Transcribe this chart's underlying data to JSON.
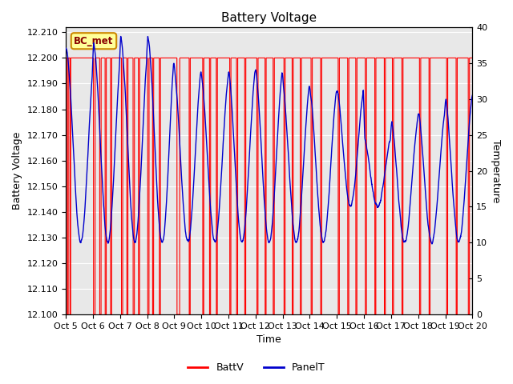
{
  "title": "Battery Voltage",
  "xlabel": "Time",
  "ylabel_left": "Battery Voltage",
  "ylabel_right": "Temperature",
  "ylim_left": [
    12.1,
    12.212
  ],
  "ylim_right": [
    0,
    40
  ],
  "yticks_left": [
    12.1,
    12.11,
    12.12,
    12.13,
    12.14,
    12.15,
    12.16,
    12.17,
    12.18,
    12.19,
    12.2,
    12.21
  ],
  "yticks_right": [
    0,
    5,
    10,
    15,
    20,
    25,
    30,
    35,
    40
  ],
  "xtick_labels": [
    "Oct 5",
    "Oct 6",
    "Oct 7",
    "Oct 8",
    "Oct 9",
    "Oct 10",
    "Oct 11",
    "Oct 12",
    "Oct 13",
    "Oct 14",
    "Oct 15",
    "Oct 16",
    "Oct 17",
    "Oct 18",
    "Oct 19",
    "Oct 20"
  ],
  "bg_color": "#e8e8e8",
  "grid_color": "#ffffff",
  "batt_color": "#ff0000",
  "panel_color": "#0000cc",
  "legend_label_batt": "BattV",
  "legend_label_panel": "PanelT",
  "station_label": "BC_met",
  "batt_voltage_high": 12.2,
  "batt_voltage_low": 12.1,
  "n_days": 15,
  "figsize": [
    6.4,
    4.8
  ],
  "dpi": 100
}
